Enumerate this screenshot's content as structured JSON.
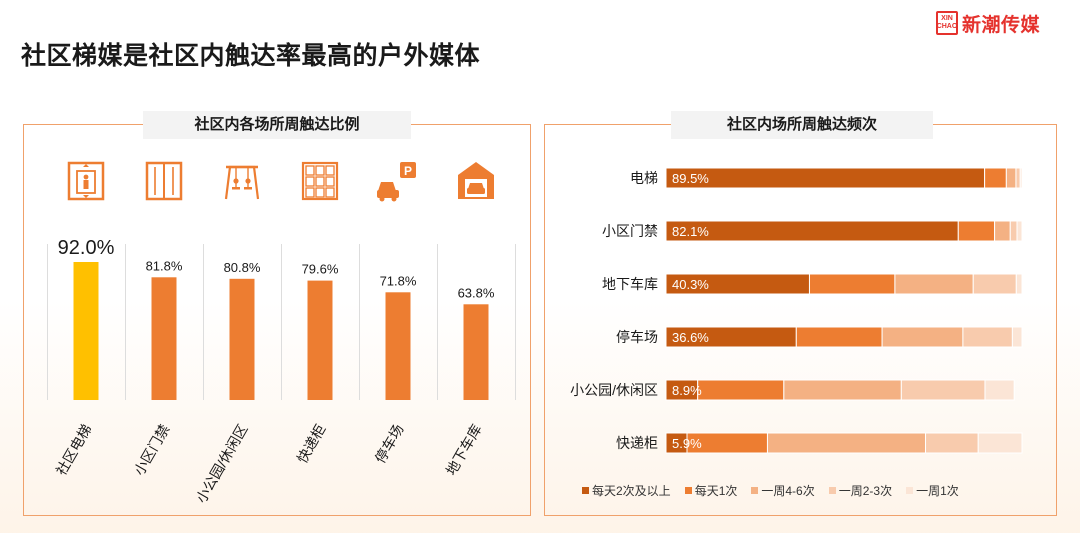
{
  "title": "社区梯媒是社区内触达率最高的户外媒体",
  "logo": {
    "brand": "新潮传媒",
    "badge_lines": [
      "XIN",
      "CHAO"
    ]
  },
  "colors": {
    "accent_orange": "#ed7d31",
    "highlight_yellow": "#ffc000",
    "stack": [
      "#c55a11",
      "#ed7d31",
      "#f4b183",
      "#f8cbad",
      "#fbe5d6"
    ]
  },
  "chart_data": [
    {
      "type": "bar",
      "title": "社区内各场所周触达比例",
      "categories": [
        "社区电梯",
        "小区门禁",
        "小公园/休闲区",
        "快递柜",
        "停车场",
        "地下车库"
      ],
      "values": [
        92.0,
        81.8,
        80.8,
        79.6,
        71.8,
        63.8
      ],
      "labels": [
        "92.0%",
        "81.8%",
        "80.8%",
        "79.6%",
        "71.8%",
        "63.8%"
      ],
      "icons": [
        "elevator-icon",
        "door-gate-icon",
        "swing-icon",
        "locker-icon",
        "parking-car-icon",
        "garage-icon"
      ],
      "parking_sign": "P",
      "ylim": [
        0,
        100
      ],
      "highlight_index": 0
    },
    {
      "type": "bar",
      "orientation": "horizontal-stacked-100",
      "title": "社区内场所周触达频次",
      "categories": [
        "电梯",
        "小区门禁",
        "地下车库",
        "停车场",
        "小公园/休闲区",
        "快递柜"
      ],
      "series": [
        {
          "name": "每天2次及以上",
          "values": [
            89.5,
            82.1,
            40.3,
            36.6,
            8.9,
            5.9
          ]
        },
        {
          "name": "每天1次",
          "values": [
            6.1,
            10.2,
            24.0,
            24.1,
            24.2,
            22.6
          ]
        },
        {
          "name": "一周4-6次",
          "values": [
            2.7,
            4.4,
            22.0,
            22.7,
            33.0,
            44.4
          ]
        },
        {
          "name": "一周2-3次",
          "values": [
            1.2,
            1.9,
            12.1,
            13.9,
            23.5,
            14.8
          ]
        },
        {
          "name": "一周1次",
          "values": [
            0.5,
            1.4,
            1.6,
            2.7,
            8.2,
            12.3
          ]
        }
      ],
      "data_labels": [
        "89.5%",
        "82.1%",
        "40.3%",
        "36.6%",
        "8.9%",
        "5.9%"
      ],
      "xlim": [
        0,
        100
      ],
      "legend_position": "bottom"
    }
  ]
}
